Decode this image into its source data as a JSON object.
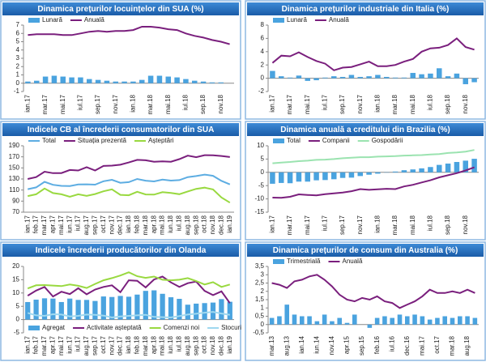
{
  "chart_data": [
    {
      "type": "combo",
      "title": "Dinamica prețurilor locuințelor din SUA (%)",
      "legend": "top",
      "categories": [
        "ian.17",
        null,
        "mar.17",
        null,
        "mai.17",
        null,
        "iul.17",
        null,
        "sep.17",
        null,
        "nov.17",
        null,
        "ian.18",
        null,
        "mar.18",
        null,
        "mai.18",
        null,
        "iul.18",
        null,
        "sep.18",
        null,
        "nov.18",
        null
      ],
      "ylim": [
        -1,
        7
      ],
      "yticks": [
        -1,
        0,
        1,
        2,
        3,
        4,
        5,
        6,
        7
      ],
      "series": [
        {
          "name": "Lunară",
          "mark": "bar",
          "color": "#4aa3df",
          "values": [
            0.2,
            0.3,
            0.8,
            0.9,
            0.8,
            0.7,
            0.7,
            0.5,
            0.4,
            0.3,
            0.2,
            0.2,
            0.2,
            0.4,
            0.9,
            0.9,
            0.8,
            0.7,
            0.5,
            0.3,
            0.2,
            0.1,
            0.1,
            0.0
          ]
        },
        {
          "name": "Anuală",
          "mark": "line",
          "color": "#7a1f7d",
          "values": [
            5.8,
            5.9,
            5.9,
            5.9,
            5.8,
            5.8,
            6.0,
            6.2,
            6.3,
            6.2,
            6.3,
            6.3,
            6.4,
            6.8,
            6.8,
            6.7,
            6.5,
            6.4,
            6.0,
            5.7,
            5.5,
            5.2,
            5.0,
            4.7
          ]
        }
      ]
    },
    {
      "type": "combo",
      "title": "Dinamica prețurilor industriale din Italia (%)",
      "legend": "top",
      "categories": [
        "ian.17",
        null,
        "mar.17",
        null,
        "mai.17",
        null,
        "iul.17",
        null,
        "sep.17",
        null,
        "nov.17",
        null,
        "ian.18",
        null,
        "mar.18",
        null,
        "mai.18",
        null,
        "iul.18",
        null,
        "sep.18",
        null,
        "nov.18",
        null
      ],
      "ylim": [
        -2,
        8
      ],
      "yticks": [
        -2,
        0,
        2,
        4,
        6,
        8
      ],
      "series": [
        {
          "name": "Lunară",
          "mark": "bar",
          "color": "#4aa3df",
          "values": [
            1.1,
            0.3,
            0.1,
            0.4,
            -0.4,
            -0.3,
            0.1,
            0.3,
            0.2,
            0.5,
            0.2,
            0.3,
            0.5,
            0.2,
            0.1,
            0.1,
            0.8,
            0.6,
            0.7,
            1.5,
            0.3,
            0.7,
            -0.9,
            -0.6
          ]
        },
        {
          "name": "Anuală",
          "mark": "line",
          "color": "#7a1f7d",
          "values": [
            2.3,
            3.4,
            3.3,
            3.9,
            3.2,
            2.6,
            2.2,
            1.2,
            1.6,
            1.7,
            2.1,
            2.5,
            1.8,
            1.8,
            2.0,
            2.5,
            2.9,
            4.0,
            4.5,
            4.6,
            5.0,
            6.0,
            4.7,
            4.3
          ]
        }
      ]
    },
    {
      "type": "line",
      "title": "Indicele CB al încrederii consumatorilor din SUA",
      "legend": "top",
      "categories": [
        "ian.17",
        "feb.17",
        "mar.17",
        "apr.17",
        "mai.17",
        "iun.17",
        "iul.17",
        "aug.17",
        "sep.17",
        "oct.17",
        "nov.17",
        "dec.17",
        "ian.18",
        "feb.18",
        "mar.18",
        "apr.18",
        "mai.18",
        "iun.18",
        "iul.18",
        "aug.18",
        "sep.18",
        "oct.18",
        "nov.18",
        "dec.18",
        "ian.19"
      ],
      "ylim": [
        70,
        190
      ],
      "yticks": [
        70,
        90,
        110,
        130,
        150,
        170,
        190
      ],
      "series": [
        {
          "name": "Total",
          "mark": "line",
          "color": "#5dade2",
          "values": [
            111.6,
            114.8,
            124.9,
            119.4,
            117.6,
            117.3,
            120.0,
            120.4,
            119.8,
            125.9,
            128.6,
            123.1,
            124.3,
            130.0,
            127.0,
            125.6,
            128.8,
            127.1,
            127.9,
            133.4,
            135.3,
            137.9,
            135.7,
            126.6,
            120.2
          ]
        },
        {
          "name": "Situația prezentă",
          "mark": "line",
          "color": "#7a1f7d",
          "values": [
            130.0,
            133.4,
            143.1,
            140.6,
            140.7,
            146.3,
            145.4,
            151.2,
            145.3,
            153.6,
            154.2,
            155.8,
            159.9,
            164.6,
            163.8,
            161.2,
            161.7,
            161.1,
            165.9,
            172.2,
            169.4,
            173.0,
            172.7,
            171.6,
            169.6
          ]
        },
        {
          "name": "Așteptări",
          "mark": "line",
          "color": "#99d940",
          "values": [
            99.1,
            102.4,
            112.8,
            104.6,
            102.3,
            98.0,
            102.4,
            99.5,
            102.8,
            107.7,
            111.3,
            101.3,
            100.6,
            106.9,
            102.0,
            101.8,
            106.2,
            104.7,
            102.5,
            107.5,
            112.2,
            114.4,
            111.1,
            96.7,
            87.3
          ]
        }
      ]
    },
    {
      "type": "combo",
      "title": "Dinamica anuală a creditului din Brazilia (%)",
      "legend": "top",
      "categories": [
        "ian.17",
        null,
        "mar.17",
        null,
        "mai.17",
        null,
        "iul.17",
        null,
        "sep.17",
        null,
        "nov.17",
        null,
        "ian.18",
        null,
        "mar.18",
        null,
        "mai.18",
        null,
        "iul.18",
        null,
        "sep.18",
        null,
        "nov.18",
        null
      ],
      "ylim": [
        -15,
        10
      ],
      "yticks": [
        -15,
        -10,
        -5,
        0,
        5,
        10
      ],
      "series": [
        {
          "name": "Total",
          "mark": "bar",
          "color": "#4aa3df",
          "values": [
            -4.3,
            -4.0,
            -4.1,
            -3.5,
            -3.5,
            -3.0,
            -2.9,
            -2.6,
            -2.1,
            -2.0,
            -1.4,
            -0.9,
            -0.5,
            -0.1,
            0.3,
            0.8,
            1.1,
            1.5,
            2.0,
            2.8,
            3.3,
            3.9,
            4.4,
            5.1
          ]
        },
        {
          "name": "Companii",
          "mark": "line",
          "color": "#7a1f7d",
          "values": [
            -9.5,
            -9.6,
            -9.2,
            -8.3,
            -8.5,
            -8.7,
            -8.2,
            -7.9,
            -7.6,
            -7.1,
            -6.3,
            -6.6,
            -6.4,
            -6.2,
            -6.3,
            -5.3,
            -4.7,
            -3.8,
            -3.0,
            -1.9,
            -1.1,
            -0.3,
            0.7,
            1.9
          ]
        },
        {
          "name": "Gospodării",
          "mark": "line",
          "color": "#9be3b0",
          "values": [
            3.4,
            3.7,
            3.9,
            4.2,
            4.4,
            4.7,
            4.8,
            5.0,
            5.3,
            5.5,
            5.7,
            5.7,
            5.9,
            6.0,
            6.1,
            6.3,
            6.4,
            6.5,
            6.7,
            6.9,
            7.3,
            7.5,
            7.8,
            8.4
          ]
        }
      ]
    },
    {
      "type": "combo",
      "title": "Indicele încrederii producătorilor din Olanda",
      "legend": "bottom",
      "categories": [
        "ian.17",
        "feb.17",
        "mar.17",
        "apr.17",
        "mai.17",
        "iun.17",
        "iul.17",
        "aug.17",
        "sep.17",
        "oct.17",
        "nov.17",
        "dec.17",
        "ian.18",
        "feb.18",
        "mar.18",
        "apr.18",
        "mai.18",
        "iun.18",
        "iul.18",
        "aug.18",
        "sep.18",
        "oct.18",
        "nov.18",
        "dec.18",
        "ian.19"
      ],
      "ylim": [
        -5,
        20
      ],
      "yticks": [
        -5,
        0,
        5,
        10,
        15,
        20
      ],
      "series": [
        {
          "name": "Agregat",
          "mark": "bar",
          "color": "#4aa3df",
          "values": [
            6.6,
            7.5,
            8.0,
            7.9,
            6.6,
            7.9,
            7.4,
            7.4,
            7.0,
            8.7,
            8.5,
            8.9,
            8.6,
            9.4,
            10.8,
            11.0,
            9.7,
            8.4,
            7.8,
            5.6,
            6.0,
            6.2,
            6.4,
            7.7,
            6.7
          ]
        },
        {
          "name": "Activitate așteptată",
          "mark": "line",
          "color": "#7a1f7d",
          "values": [
            9.0,
            10.9,
            12.3,
            8.7,
            10.5,
            9.6,
            11.8,
            9.5,
            11.3,
            12.3,
            12.9,
            10.3,
            14.8,
            14.6,
            12.1,
            15.1,
            16.2,
            14.0,
            12.3,
            13.7,
            14.3,
            10.8,
            9.2,
            10.6,
            6.2
          ]
        },
        {
          "name": "Comenzi noi",
          "mark": "line",
          "color": "#99d940",
          "values": [
            11.7,
            12.9,
            13.0,
            12.8,
            12.6,
            13.2,
            12.7,
            11.9,
            13.4,
            14.8,
            15.6,
            16.6,
            17.8,
            16.3,
            15.7,
            16.2,
            15.0,
            14.8,
            15.0,
            15.6,
            14.5,
            13.2,
            14.1,
            12.3,
            13.2
          ]
        },
        {
          "name": "Stocuri",
          "mark": "line",
          "color": "#9fd8ef",
          "values": [
            2.5,
            1.6,
            1.4,
            2.0,
            1.9,
            1.2,
            1.4,
            1.9,
            1.8,
            1.5,
            0.8,
            1.2,
            1.4,
            1.6,
            1.8,
            1.0,
            0.9,
            0.8,
            1.3,
            1.9,
            2.2,
            2.6,
            2.9,
            2.3,
            1.8
          ]
        }
      ]
    },
    {
      "type": "combo",
      "title": "Dinamica prețurilor de consum din Australia (%)",
      "legend": "top",
      "categories": [
        "mar.13",
        null,
        "aug.13",
        null,
        "ian.14",
        null,
        "iun.14",
        null,
        "nov.14",
        null,
        "apr.15",
        null,
        "sep.15",
        null,
        "feb.16",
        null,
        "iul.16",
        null,
        "dec.16",
        null,
        "mai.17",
        null,
        "oct.17",
        null,
        "mar.18",
        null,
        "aug.18",
        null
      ],
      "ylim": [
        -0.5,
        3.5
      ],
      "yticks": [
        {
          "value": -0.5,
          "label": "-0,5"
        },
        0,
        {
          "value": 0.5,
          "label": "0,5"
        },
        1,
        {
          "value": 1.5,
          "label": "1,5"
        },
        2,
        {
          "value": 2.5,
          "label": "2,5"
        },
        3,
        {
          "value": 3.5,
          "label": "3,5"
        }
      ],
      "series": [
        {
          "name": "Trimestrială",
          "mark": "bar",
          "color": "#4aa3df",
          "values": [
            0.4,
            0.5,
            1.2,
            0.6,
            0.5,
            0.5,
            0.2,
            0.6,
            0.2,
            0.4,
            0.1,
            0.6,
            0.0,
            -0.2,
            0.4,
            0.5,
            0.4,
            0.6,
            0.5,
            0.6,
            0.5,
            0.3,
            0.4,
            0.5,
            0.4,
            0.5,
            0.5,
            0.4
          ]
        },
        {
          "name": "Anuală",
          "mark": "line",
          "color": "#7a1f7d",
          "values": [
            2.5,
            2.4,
            2.2,
            2.6,
            2.7,
            2.9,
            3.0,
            2.7,
            2.3,
            1.8,
            1.5,
            1.4,
            1.6,
            1.5,
            1.7,
            1.4,
            1.3,
            1.0,
            1.2,
            1.4,
            1.7,
            2.1,
            1.9,
            1.9,
            2.0,
            1.9,
            2.1,
            1.9
          ]
        }
      ]
    }
  ]
}
